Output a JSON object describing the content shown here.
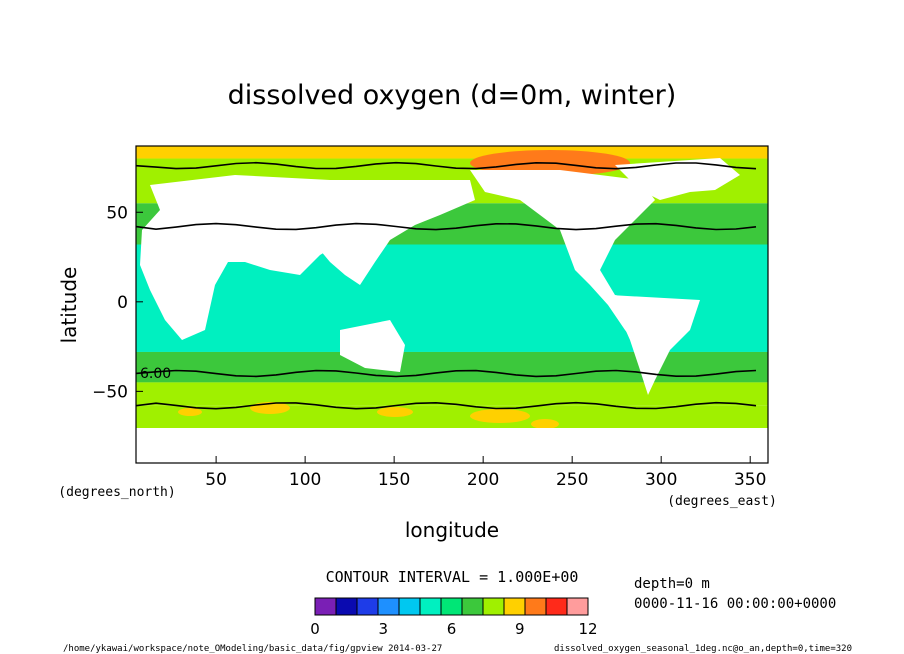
{
  "chart_data": {
    "type": "heatmap",
    "title": "dissolved oxygen (d=0m, winter)",
    "xlabel": "longitude",
    "ylabel": "latitude",
    "x_unit": "(degrees_east)",
    "y_unit": "(degrees_north)",
    "xlim": [
      0,
      360
    ],
    "ylim": [
      -90,
      90
    ],
    "x_ticks": [
      50,
      100,
      150,
      200,
      250,
      300,
      350
    ],
    "y_ticks": [
      50,
      0,
      -50
    ],
    "contour_interval_text": "CONTOUR INTERVAL = 1.000E+00",
    "contour_label": "6.00",
    "contour_lines_lat": [
      76,
      42,
      -40,
      -58
    ],
    "colorbar": {
      "levels": [
        0,
        1,
        2,
        3,
        4,
        5,
        6,
        7,
        8,
        9,
        10,
        11,
        12
      ],
      "tick_labels": [
        "0",
        "3",
        "6",
        "9",
        "12"
      ],
      "colors": [
        "#7a1fb5",
        "#0a0ab0",
        "#1e3ce8",
        "#1e90ff",
        "#00c8f0",
        "#00f0c0",
        "#00e676",
        "#3cc83c",
        "#a0f000",
        "#ffd000",
        "#ff7a1a",
        "#ff2a1a",
        "#ff9c9c"
      ]
    },
    "bands": [
      {
        "lat_from": 90,
        "lat_to": 80,
        "level_color": "#ffd000"
      },
      {
        "lat_from": 80,
        "lat_to": 55,
        "level_color": "#a0f000"
      },
      {
        "lat_from": 55,
        "lat_to": 32,
        "level_color": "#3cc83c"
      },
      {
        "lat_from": 32,
        "lat_to": -28,
        "level_color": "#00f0c0"
      },
      {
        "lat_from": -28,
        "lat_to": -45,
        "level_color": "#3cc83c"
      },
      {
        "lat_from": -45,
        "lat_to": -58,
        "level_color": "#a0f000"
      },
      {
        "lat_from": -58,
        "lat_to": -90,
        "level_color": "#a0f000"
      }
    ],
    "legend": "bottom-center",
    "grid": false
  },
  "info": {
    "depth": "depth=0 m",
    "time": "0000-11-16 00:00:00+0000",
    "footer_path": "/home/ykawai/workspace/note_OModeling/basic_data/fig/gpview  2014-03-27",
    "footer_file": "dissolved_oxygen_seasonal_1deg.nc@o_an,depth=0,time=320"
  },
  "colors": {
    "land": "#ffffff",
    "contour": "#000000",
    "frame": "#000000"
  }
}
